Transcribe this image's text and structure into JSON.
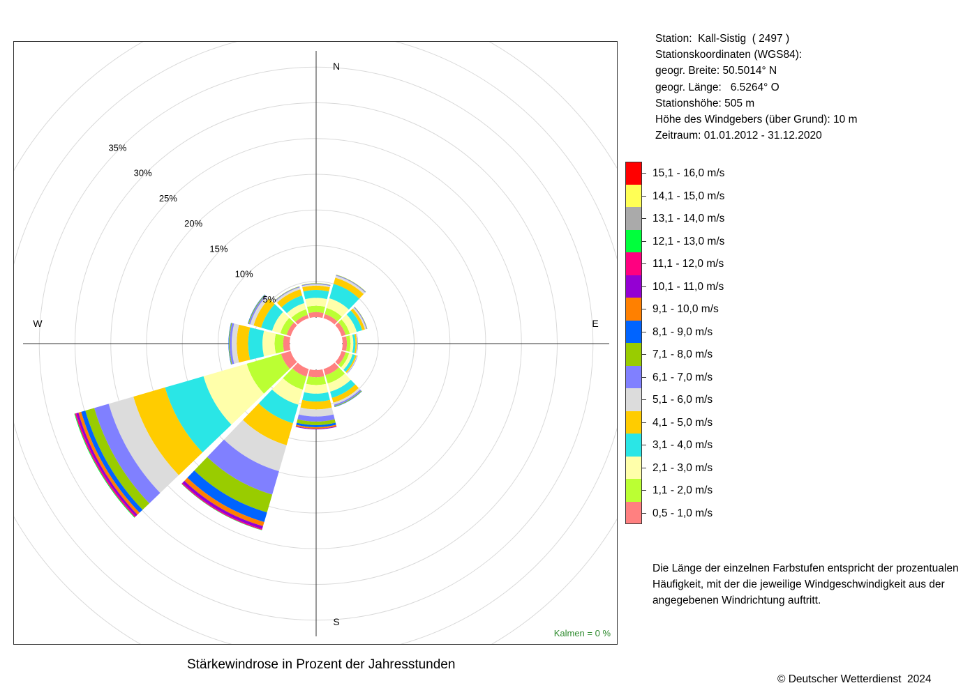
{
  "station": {
    "line1": "Station:  Kall-Sistig  ( 2497 )",
    "line2": "Stationskoordinaten (WGS84):",
    "line3": "geogr. Breite: 50.5014° N",
    "line4": "geogr. Länge:   6.5264° O",
    "line5": "Stationshöhe: 505 m",
    "line6": "Höhe des Windgebers (über Grund): 10 m",
    "line7": "Zeitraum: 01.01.2012 - 31.12.2020"
  },
  "legend": [
    {
      "label": "15,1 - 16,0 m/s",
      "color": "#ff0000"
    },
    {
      "label": "14,1 - 15,0 m/s",
      "color": "#ffff55"
    },
    {
      "label": "13,1 - 14,0 m/s",
      "color": "#aaaaaa"
    },
    {
      "label": "12,1 - 13,0 m/s",
      "color": "#00ff3c"
    },
    {
      "label": "11,1 - 12,0 m/s",
      "color": "#ff0080"
    },
    {
      "label": "10,1 - 11,0 m/s",
      "color": "#9400d3"
    },
    {
      "label": "9,1 - 10,0 m/s",
      "color": "#ff8000"
    },
    {
      "label": "8,1 - 9,0 m/s",
      "color": "#0064ff"
    },
    {
      "label": "7,1 - 8,0 m/s",
      "color": "#99cc00"
    },
    {
      "label": "6,1 - 7,0 m/s",
      "color": "#8080ff"
    },
    {
      "label": "5,1 - 6,0 m/s",
      "color": "#dcdcdc"
    },
    {
      "label": "4,1 - 5,0 m/s",
      "color": "#ffcc00"
    },
    {
      "label": "3,1 - 4,0 m/s",
      "color": "#2ae6e6"
    },
    {
      "label": "2,1 - 3,0 m/s",
      "color": "#ffffaa"
    },
    {
      "label": "1,1 - 2,0 m/s",
      "color": "#bbff33"
    },
    {
      "label": "0,5 - 1,0 m/s",
      "color": "#ff8080"
    }
  ],
  "note": {
    "line1": "Die Länge der einzelnen Farbstufen entspricht der prozentualen",
    "line2": "Häufigkeit, mit der die jeweilige Windgeschwindigkeit aus der",
    "line3": "angegebenen Windrichtung auftritt."
  },
  "title": "Stärkewindrose in Prozent der Jahresstunden",
  "copyright": "© Deutscher Wetterdienst  2024",
  "calms": "Kalmen  =  0 %",
  "compass": {
    "n": "N",
    "e": "E",
    "s": "S",
    "w": "W"
  },
  "chart_data": {
    "type": "wind-rose",
    "unit": "%",
    "ring_labels": [
      "5%",
      "10%",
      "15%",
      "20%",
      "25%",
      "30%",
      "35%"
    ],
    "ring_values": [
      5,
      10,
      15,
      20,
      25,
      30,
      35,
      40,
      45
    ],
    "sector_width_deg": 30,
    "directions_deg": [
      0,
      30,
      60,
      90,
      120,
      150,
      180,
      210,
      240,
      270,
      300,
      330
    ],
    "speed_classes": [
      "0,5 - 1,0 m/s",
      "1,1 - 2,0 m/s",
      "2,1 - 3,0 m/s",
      "3,1 - 4,0 m/s",
      "4,1 - 5,0 m/s",
      "5,1 - 6,0 m/s",
      "6,1 - 7,0 m/s",
      "7,1 - 8,0 m/s",
      "8,1 - 9,0 m/s",
      "9,1 - 10,0 m/s",
      "10,1 - 11,0 m/s",
      "11,1 - 12,0 m/s",
      "12,1 - 13,0 m/s",
      "13,1 - 14,0 m/s",
      "14,1 - 15,0 m/s",
      "15,1 - 16,0 m/s"
    ],
    "sectors": [
      {
        "dir": 0,
        "values": [
          0.7,
          0.9,
          1.1,
          1.1,
          0.6,
          0.2,
          0.1,
          0.05,
          0,
          0,
          0,
          0,
          0,
          0,
          0,
          0
        ]
      },
      {
        "dir": 30,
        "values": [
          0.6,
          0.9,
          1.4,
          2.1,
          0.9,
          0.3,
          0.1,
          0.05,
          0,
          0,
          0,
          0,
          0,
          0,
          0,
          0
        ]
      },
      {
        "dir": 60,
        "values": [
          0.6,
          0.6,
          1.0,
          0.8,
          0.4,
          0.2,
          0.1,
          0.05,
          0,
          0,
          0,
          0,
          0,
          0,
          0,
          0
        ]
      },
      {
        "dir": 90,
        "values": [
          0.6,
          0.5,
          0.4,
          0.3,
          0.2,
          0.1,
          0.05,
          0,
          0,
          0,
          0,
          0,
          0,
          0,
          0,
          0
        ]
      },
      {
        "dir": 120,
        "values": [
          0.6,
          0.5,
          0.5,
          0.4,
          0.2,
          0.1,
          0.05,
          0,
          0,
          0,
          0,
          0,
          0,
          0,
          0,
          0
        ]
      },
      {
        "dir": 150,
        "values": [
          0.9,
          1.2,
          1.2,
          0.9,
          0.7,
          0.3,
          0.2,
          0.1,
          0.05,
          0,
          0,
          0,
          0,
          0,
          0,
          0
        ]
      },
      {
        "dir": 180,
        "values": [
          1.0,
          1.1,
          1.2,
          1.1,
          1.1,
          1.0,
          0.7,
          0.5,
          0.3,
          0.2,
          0.1,
          0,
          0,
          0,
          0,
          0
        ]
      },
      {
        "dir": 210,
        "values": [
          1.1,
          1.9,
          2.2,
          2.7,
          3.2,
          3.8,
          3.4,
          2.6,
          1.4,
          0.6,
          0.4,
          0.15,
          0.05,
          0,
          0,
          0
        ]
      },
      {
        "dir": 240,
        "values": [
          1.4,
          5.0,
          6.3,
          5.6,
          4.6,
          3.6,
          2.1,
          1.3,
          0.6,
          0.4,
          0.3,
          0.2,
          0.1,
          0,
          0,
          0
        ]
      },
      {
        "dir": 270,
        "values": [
          0.9,
          1.2,
          1.7,
          2.0,
          1.6,
          0.7,
          0.3,
          0.1,
          0.05,
          0,
          0,
          0,
          0,
          0,
          0,
          0
        ]
      },
      {
        "dir": 300,
        "values": [
          0.6,
          0.9,
          1.2,
          1.6,
          1.1,
          0.5,
          0.2,
          0.1,
          0.05,
          0,
          0,
          0,
          0,
          0,
          0,
          0
        ]
      },
      {
        "dir": 330,
        "values": [
          0.5,
          0.8,
          0.9,
          1.1,
          0.9,
          0.3,
          0.1,
          0.05,
          0,
          0,
          0,
          0,
          0,
          0,
          0,
          0
        ]
      }
    ]
  }
}
